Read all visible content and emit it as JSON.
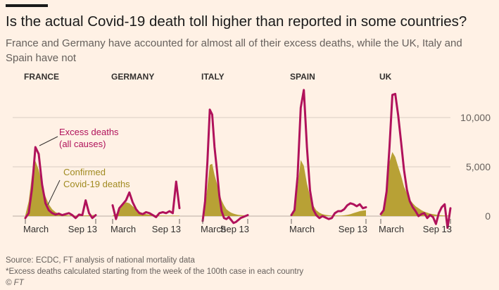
{
  "title": "Is the actual Covid-19 death toll higher than reported in some countries?",
  "subtitle": "France and Germany have accounted for almost all of their excess deaths, while the UK, Italy and Spain have not",
  "footer": {
    "source": "Source: ECDC, FT analysis of national mortality data",
    "note": "*Excess deaths calculated starting from the week of the 100th case in each country",
    "credit": "© FT"
  },
  "colors": {
    "background": "#fff1e5",
    "excess": "#b0125b",
    "confirmed": "#b8a135",
    "grid": "#d8cdc2",
    "text": "#33302e"
  },
  "chart_data": {
    "type": "area",
    "y_ticks": [
      0,
      5000,
      10000
    ],
    "y_tick_labels": [
      "0",
      "5,000",
      "10,000"
    ],
    "ylim": [
      -1200,
      13000
    ],
    "grid": true,
    "x_tick_labels": [
      "March",
      "Sep 13"
    ],
    "annotations": {
      "excess": [
        "Excess deaths",
        "(all causes)"
      ],
      "confirmed": [
        "Confirmed",
        "Covid-19 deaths"
      ]
    },
    "series": [
      {
        "name": "FRANCE",
        "excess": [
          -200,
          300,
          2800,
          7000,
          6300,
          3200,
          1300,
          600,
          300,
          150,
          250,
          100,
          200,
          300,
          100,
          -200,
          150,
          100,
          1600,
          300,
          -200,
          100
        ],
        "confirmed": [
          100,
          1500,
          4200,
          5600,
          4700,
          3200,
          2000,
          1200,
          700,
          400,
          250,
          150,
          100,
          80,
          60,
          50,
          50,
          60,
          70,
          80,
          100,
          120
        ]
      },
      {
        "name": "GERMANY",
        "excess": [
          1100,
          -300,
          800,
          1200,
          1600,
          2400,
          1400,
          700,
          300,
          200,
          400,
          300,
          100,
          -100,
          300,
          400,
          300,
          500,
          300,
          3500,
          800
        ],
        "confirmed": [
          50,
          200,
          600,
          1100,
          1400,
          1300,
          1000,
          700,
          450,
          300,
          200,
          150,
          100,
          80,
          60,
          50,
          40,
          40,
          40,
          40,
          40
        ]
      },
      {
        "name": "ITALY",
        "excess": [
          -500,
          1500,
          5500,
          10800,
          10300,
          7000,
          4700,
          2100,
          500,
          -200,
          -300,
          -100,
          -400,
          -700,
          -600,
          -400,
          -200,
          -100,
          0,
          100
        ],
        "confirmed": [
          100,
          800,
          3000,
          5200,
          5300,
          4200,
          3300,
          2300,
          1600,
          1100,
          700,
          500,
          350,
          250,
          180,
          120,
          100,
          80,
          80,
          80
        ]
      },
      {
        "name": "SPAIN",
        "excess": [
          100,
          600,
          4000,
          11000,
          12800,
          7000,
          2600,
          700,
          100,
          -200,
          0,
          -150,
          -300,
          -200,
          300,
          500,
          500,
          700,
          1100,
          1300,
          1200,
          1000,
          1200,
          800,
          900
        ],
        "confirmed": [
          50,
          600,
          3000,
          5700,
          5100,
          3300,
          2000,
          1100,
          600,
          350,
          200,
          120,
          80,
          60,
          50,
          50,
          50,
          80,
          120,
          200,
          300,
          400,
          500,
          550,
          600
        ]
      },
      {
        "name": "UK",
        "excess": [
          200,
          600,
          2500,
          7000,
          12300,
          12400,
          10200,
          7500,
          4700,
          2700,
          1500,
          900,
          500,
          0,
          200,
          300,
          -200,
          100,
          -100,
          -800,
          300,
          900,
          1200,
          -1200,
          800
        ],
        "confirmed": [
          50,
          500,
          2600,
          5500,
          6500,
          6000,
          5000,
          4100,
          3000,
          2300,
          1700,
          1300,
          1000,
          800,
          600,
          450,
          350,
          250,
          200,
          150,
          100,
          80,
          60,
          50,
          50
        ]
      }
    ]
  }
}
